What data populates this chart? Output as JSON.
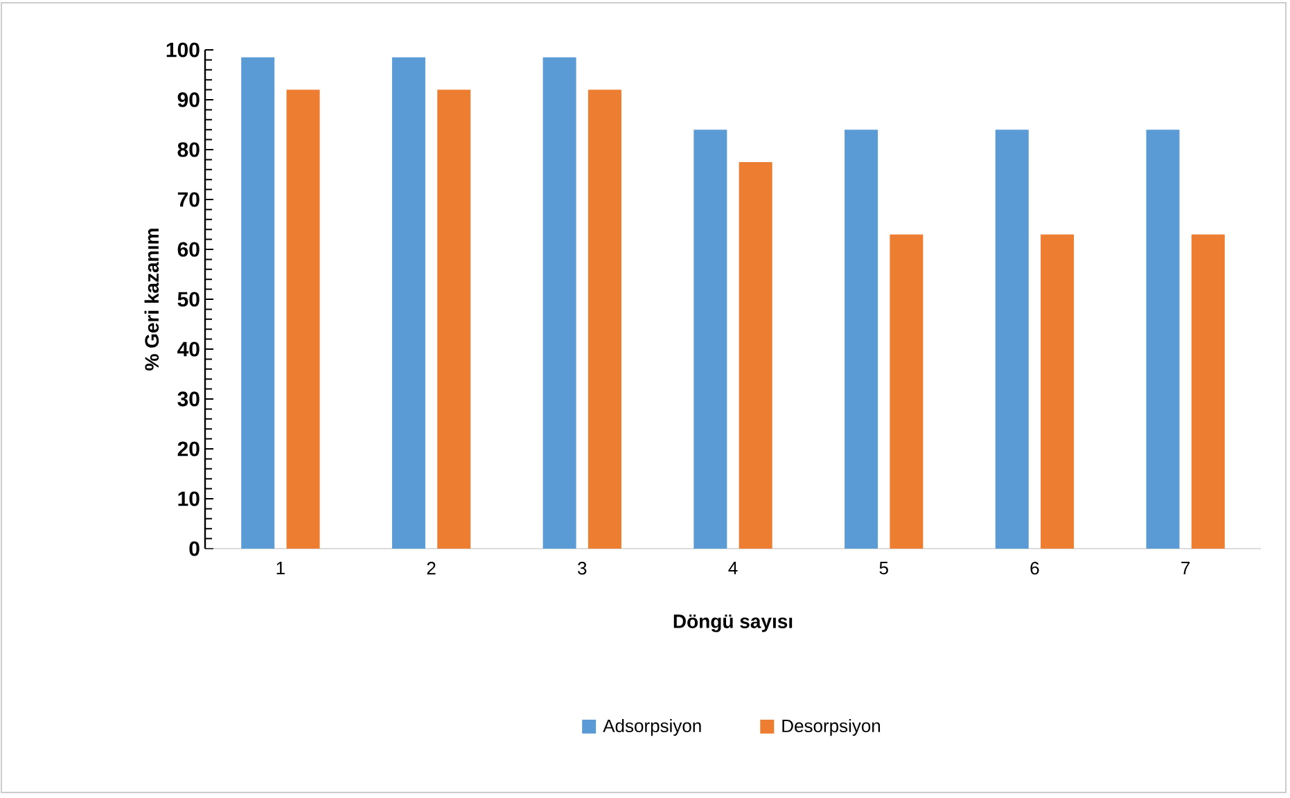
{
  "chart_data": {
    "type": "bar",
    "xlabel": "Döngü sayısı",
    "ylabel": "% Geri kazanım",
    "categories": [
      "1",
      "2",
      "3",
      "4",
      "5",
      "6",
      "7"
    ],
    "series": [
      {
        "name": "Adsorpsiyon",
        "color": "#5b9bd5",
        "values": [
          98.5,
          98.5,
          98.5,
          84,
          84,
          84,
          84
        ]
      },
      {
        "name": "Desorpsiyon",
        "color": "#ed7d31",
        "values": [
          92,
          92,
          92,
          77.5,
          63,
          63,
          63
        ]
      }
    ],
    "ylim": [
      0,
      100
    ],
    "yticks": [
      0,
      10,
      20,
      30,
      40,
      50,
      60,
      70,
      80,
      90,
      100
    ],
    "grid": false,
    "legend": "bottom"
  }
}
